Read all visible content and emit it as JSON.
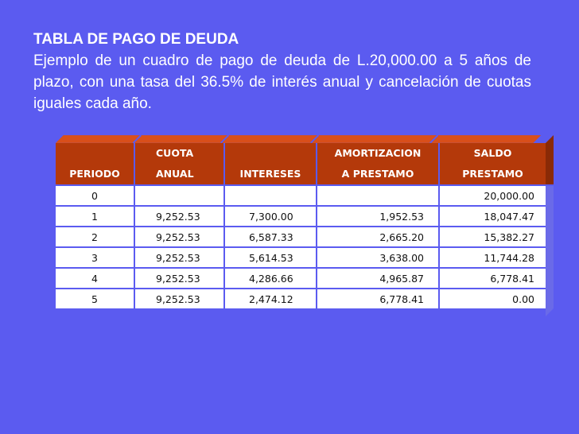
{
  "heading": {
    "title": "TABLA DE PAGO DE DEUDA",
    "description": "Ejemplo de un cuadro de pago de deuda de L.20,000.00 a 5 años de plazo, con una tasa del 36.5% de interés anual y cancelación de cuotas iguales cada año."
  },
  "table": {
    "header_row1": [
      "",
      "CUOTA",
      "",
      "AMORTIZACION",
      "SALDO"
    ],
    "header_row2": [
      "PERIODO",
      "ANUAL",
      "INTERESES",
      "A PRESTAMO",
      "PRESTAMO"
    ],
    "rows": [
      [
        "0",
        "",
        "",
        "",
        "20,000.00"
      ],
      [
        "1",
        "9,252.53",
        "7,300.00",
        "1,952.53",
        "18,047.47"
      ],
      [
        "2",
        "9,252.53",
        "6,587.33",
        "2,665.20",
        "15,382.27"
      ],
      [
        "3",
        "9,252.53",
        "5,614.53",
        "3,638.00",
        "11,744.28"
      ],
      [
        "4",
        "9,252.53",
        "4,286.66",
        "4,965.87",
        "6,778.41"
      ],
      [
        "5",
        "9,252.53",
        "2,474.12",
        "6,778.41",
        "0.00"
      ]
    ]
  },
  "colors": {
    "background": "#5b5bf0",
    "header_fill": "#b4390a",
    "header_bevel": "#d94f1a",
    "cell_fill": "#ffffff"
  }
}
